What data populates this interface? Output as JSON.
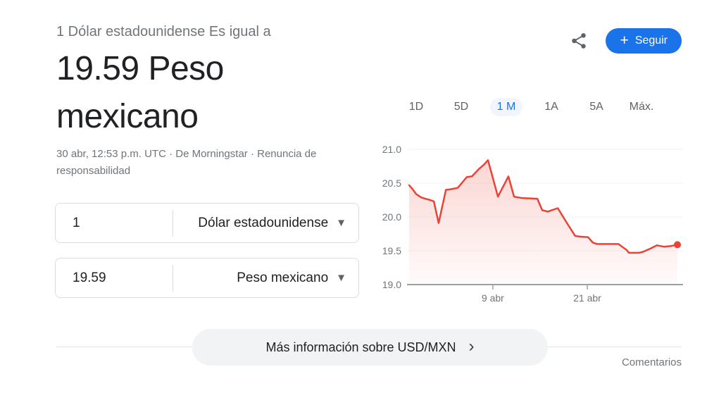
{
  "header": {
    "subtitle": "1 Dólar estadounidense Es igual a",
    "rate": "19.59 Peso mexicano",
    "meta_prefix": "30 abr, 12:53 p.m. UTC · De Morningstar · ",
    "disclaimer": "Renuncia de responsabilidad"
  },
  "actions": {
    "follow_label": "Seguir"
  },
  "converter": {
    "rows": [
      {
        "amount": "1",
        "currency": "Dólar estadounidense"
      },
      {
        "amount": "19.59",
        "currency": "Peso mexicano"
      }
    ]
  },
  "chart": {
    "tabs": [
      {
        "label": "1D",
        "active": false
      },
      {
        "label": "5D",
        "active": false
      },
      {
        "label": "1 M",
        "active": true
      },
      {
        "label": "1A",
        "active": false
      },
      {
        "label": "5A",
        "active": false
      },
      {
        "label": "Máx.",
        "active": false
      }
    ]
  },
  "chart_data": {
    "type": "area",
    "title": "USD/MXN exchange rate, 1 month",
    "current_value": 19.59,
    "ylim": [
      19.0,
      21.0
    ],
    "y_ticks": [
      21.0,
      20.5,
      20.0,
      19.5,
      19.0
    ],
    "x_ticks": [
      {
        "label": "9 abr",
        "frac": 0.312
      },
      {
        "label": "21 abr",
        "frac": 0.664
      }
    ],
    "grid": true,
    "line_color": "#ea4335",
    "fill": "red-fade-gradient",
    "end_dot": true,
    "series": [
      {
        "name": "USD/MXN",
        "points": [
          [
            0.0,
            20.47
          ],
          [
            0.013,
            20.41
          ],
          [
            0.026,
            20.34
          ],
          [
            0.045,
            20.29
          ],
          [
            0.06,
            20.27
          ],
          [
            0.079,
            20.25
          ],
          [
            0.092,
            20.23
          ],
          [
            0.11,
            19.91
          ],
          [
            0.137,
            20.4
          ],
          [
            0.155,
            20.41
          ],
          [
            0.181,
            20.43
          ],
          [
            0.215,
            20.59
          ],
          [
            0.234,
            20.6
          ],
          [
            0.26,
            20.71
          ],
          [
            0.278,
            20.77
          ],
          [
            0.294,
            20.84
          ],
          [
            0.331,
            20.3
          ],
          [
            0.37,
            20.6
          ],
          [
            0.391,
            20.3
          ],
          [
            0.42,
            20.28
          ],
          [
            0.478,
            20.27
          ],
          [
            0.496,
            20.1
          ],
          [
            0.517,
            20.08
          ],
          [
            0.554,
            20.13
          ],
          [
            0.593,
            19.88
          ],
          [
            0.619,
            19.72
          ],
          [
            0.633,
            19.71
          ],
          [
            0.667,
            19.7
          ],
          [
            0.685,
            19.62
          ],
          [
            0.701,
            19.6
          ],
          [
            0.78,
            19.6
          ],
          [
            0.811,
            19.51
          ],
          [
            0.819,
            19.47
          ],
          [
            0.856,
            19.47
          ],
          [
            0.869,
            19.48
          ],
          [
            0.898,
            19.53
          ],
          [
            0.924,
            19.58
          ],
          [
            0.95,
            19.56
          ],
          [
            0.976,
            19.57
          ],
          [
            1.0,
            19.59
          ]
        ]
      }
    ]
  },
  "footer": {
    "more_info": "Más información sobre USD/MXN",
    "comments": "Comentarios"
  },
  "icons": {
    "plus_icon": "+",
    "chevron_down_icon": "▼",
    "chevron_right_icon": "›"
  },
  "colors": {
    "accent_blue": "#1a73e8",
    "chart_red": "#ea4335",
    "text_dark": "#202124",
    "text_gray": "#70757a",
    "border_gray": "#dadce0",
    "pill_gray": "#f1f3f4"
  }
}
